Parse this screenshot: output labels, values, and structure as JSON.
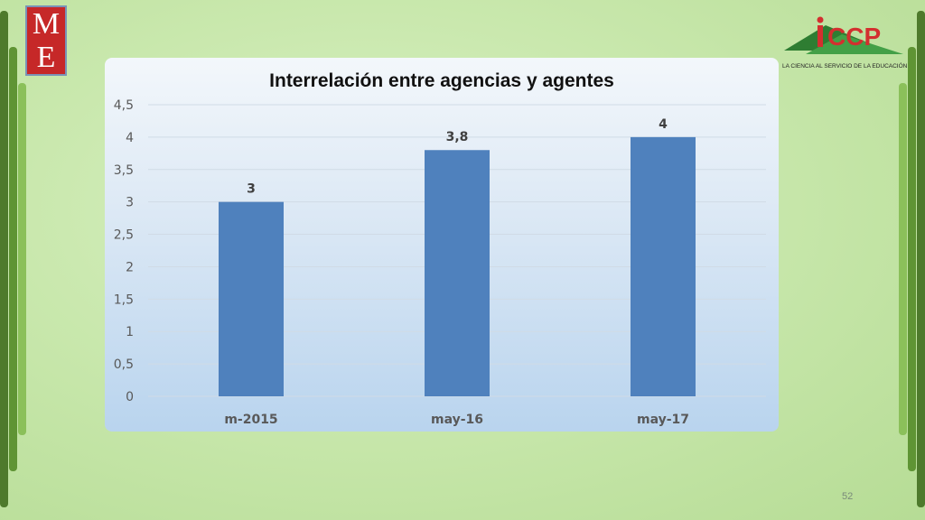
{
  "slide": {
    "page_number": "52"
  },
  "logos": {
    "left": {
      "letters": [
        "M",
        "E"
      ],
      "color": "#c62828"
    },
    "right": {
      "name": "iCCP",
      "tagline": "LA CIENCIA AL SERVICIO DE LA EDUCACIÓN",
      "color": "#d32f2f",
      "accent": "#2e7d32"
    }
  },
  "chart_data": {
    "type": "bar",
    "title": "Interrelación entre agencias y agentes",
    "categories": [
      "m-2015",
      "may-16",
      "may-17"
    ],
    "values": [
      3,
      3.8,
      4
    ],
    "value_labels": [
      "3",
      "3,8",
      "4"
    ],
    "ylim": [
      0,
      4.5
    ],
    "yticks": [
      "0",
      "0,5",
      "1",
      "1,5",
      "2",
      "2,5",
      "3",
      "3,5",
      "4",
      "4,5"
    ],
    "grid": true,
    "bar_color": "#4f81bd"
  }
}
